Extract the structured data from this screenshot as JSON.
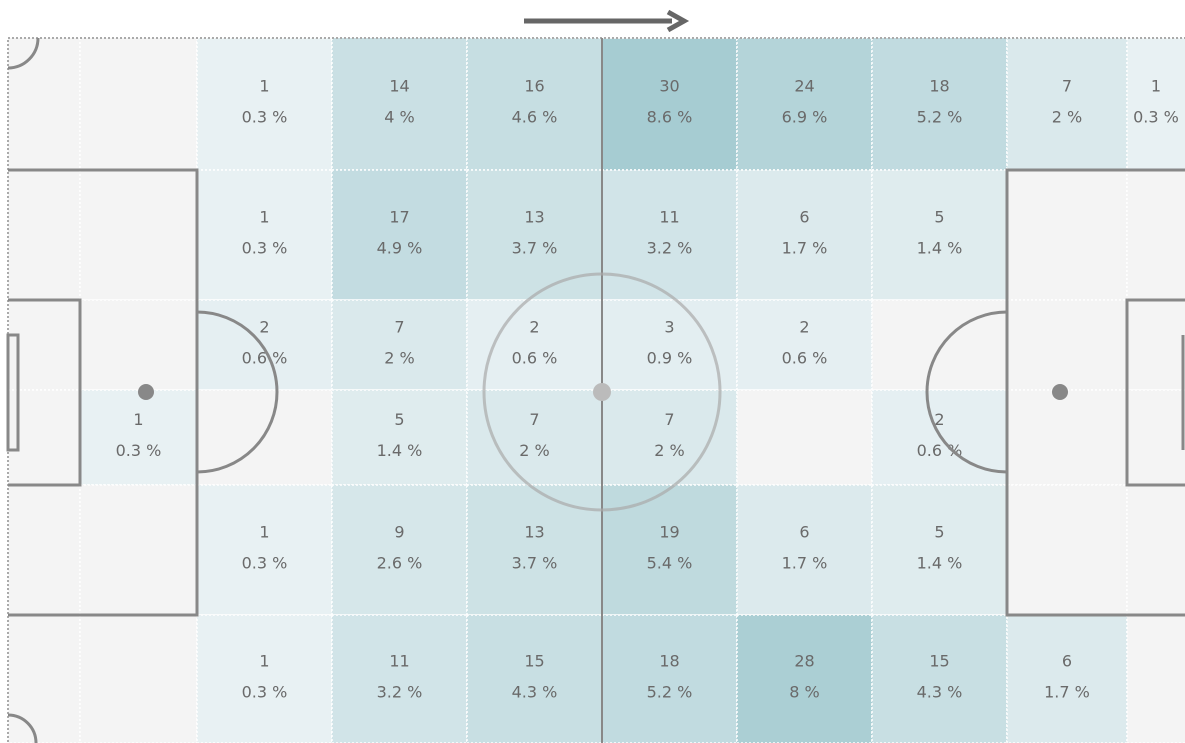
{
  "grid": {
    "rows": [
      [
        null,
        null,
        {
          "count": 1,
          "percent": "0.3 %"
        },
        {
          "count": 14,
          "percent": "4 %"
        },
        {
          "count": 16,
          "percent": "4.6 %"
        },
        {
          "count": 30,
          "percent": "8.6 %"
        },
        {
          "count": 24,
          "percent": "6.9 %"
        },
        {
          "count": 18,
          "percent": "5.2 %"
        },
        {
          "count": 7,
          "percent": "2 %"
        },
        {
          "count": 1,
          "percent": "0.3 %"
        }
      ],
      [
        null,
        null,
        {
          "count": 1,
          "percent": "0.3 %"
        },
        {
          "count": 17,
          "percent": "4.9 %"
        },
        {
          "count": 13,
          "percent": "3.7 %"
        },
        {
          "count": 11,
          "percent": "3.2 %"
        },
        {
          "count": 6,
          "percent": "1.7 %"
        },
        {
          "count": 5,
          "percent": "1.4 %"
        },
        null,
        null
      ],
      [
        null,
        null,
        {
          "count": 2,
          "percent": "0.6 %"
        },
        {
          "count": 7,
          "percent": "2 %"
        },
        {
          "count": 2,
          "percent": "0.6 %"
        },
        {
          "count": 3,
          "percent": "0.9 %"
        },
        {
          "count": 2,
          "percent": "0.6 %"
        },
        null,
        null,
        null
      ],
      [
        null,
        {
          "count": 1,
          "percent": "0.3 %"
        },
        null,
        {
          "count": 5,
          "percent": "1.4 %"
        },
        {
          "count": 7,
          "percent": "2 %"
        },
        {
          "count": 7,
          "percent": "2 %"
        },
        null,
        {
          "count": 2,
          "percent": "0.6 %"
        },
        null,
        null
      ],
      [
        null,
        null,
        {
          "count": 1,
          "percent": "0.3 %"
        },
        {
          "count": 9,
          "percent": "2.6 %"
        },
        {
          "count": 13,
          "percent": "3.7 %"
        },
        {
          "count": 19,
          "percent": "5.4 %"
        },
        {
          "count": 6,
          "percent": "1.7 %"
        },
        {
          "count": 5,
          "percent": "1.4 %"
        },
        null,
        null
      ],
      [
        null,
        null,
        {
          "count": 1,
          "percent": "0.3 %"
        },
        {
          "count": 11,
          "percent": "3.2 %"
        },
        {
          "count": 15,
          "percent": "4.3 %"
        },
        {
          "count": 18,
          "percent": "5.2 %"
        },
        {
          "count": 28,
          "percent": "8 %"
        },
        {
          "count": 15,
          "percent": "4.3 %"
        },
        {
          "count": 6,
          "percent": "1.7 %"
        },
        null
      ]
    ]
  }
}
